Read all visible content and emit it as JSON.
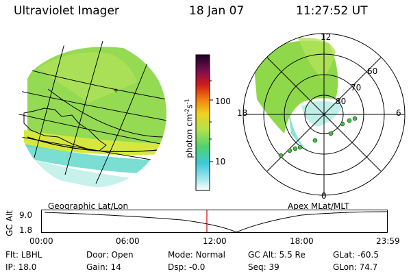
{
  "header": {
    "title": "Ultraviolet Imager",
    "date": "18 Jan 07",
    "time": "11:27:52 UT"
  },
  "colorbar": {
    "unit_label": "photon cm",
    "unit_sup1": "-2",
    "unit_s": "s",
    "unit_sup2": "-1",
    "ticks": [
      "100",
      "10"
    ]
  },
  "polar_plot": {
    "labels": {
      "top": "12",
      "left": "18",
      "right": "6",
      "bottom": "0"
    },
    "lat_rings": [
      "60",
      "70",
      "80"
    ]
  },
  "timeline": {
    "left_title": "Geographic Lat/Lon",
    "right_title": "Apex MLat/MLT",
    "axis_label": "GC Alt",
    "y_ticks": [
      "9.0",
      "1.8"
    ],
    "x_ticks": [
      "00:00",
      "06:00",
      "12:00",
      "18:00",
      "23:59"
    ],
    "cursor_time": "11:27:52"
  },
  "info": {
    "row1": [
      {
        "label": "Flt:",
        "value": "LBHL"
      },
      {
        "label": "Door:",
        "value": "Open"
      },
      {
        "label": "Mode:",
        "value": "Normal"
      },
      {
        "label": "GC Alt:",
        "value": "5.5 Re"
      },
      {
        "label": "GLat:",
        "value": "-60.5"
      }
    ],
    "row2": [
      {
        "label": "IP:",
        "value": "18.0"
      },
      {
        "label": "Gain:",
        "value": "14"
      },
      {
        "label": "Dsp:",
        "value": "-0.0"
      },
      {
        "label": "Seq:",
        "value": "39"
      },
      {
        "label": "GLon:",
        "value": "74.7"
      }
    ]
  },
  "colors": {
    "aurora_green": "#8ed84a",
    "aurora_yellow": "#d6e840",
    "aurora_cyan": "#59d6c8",
    "cursor": "#cc0000"
  }
}
